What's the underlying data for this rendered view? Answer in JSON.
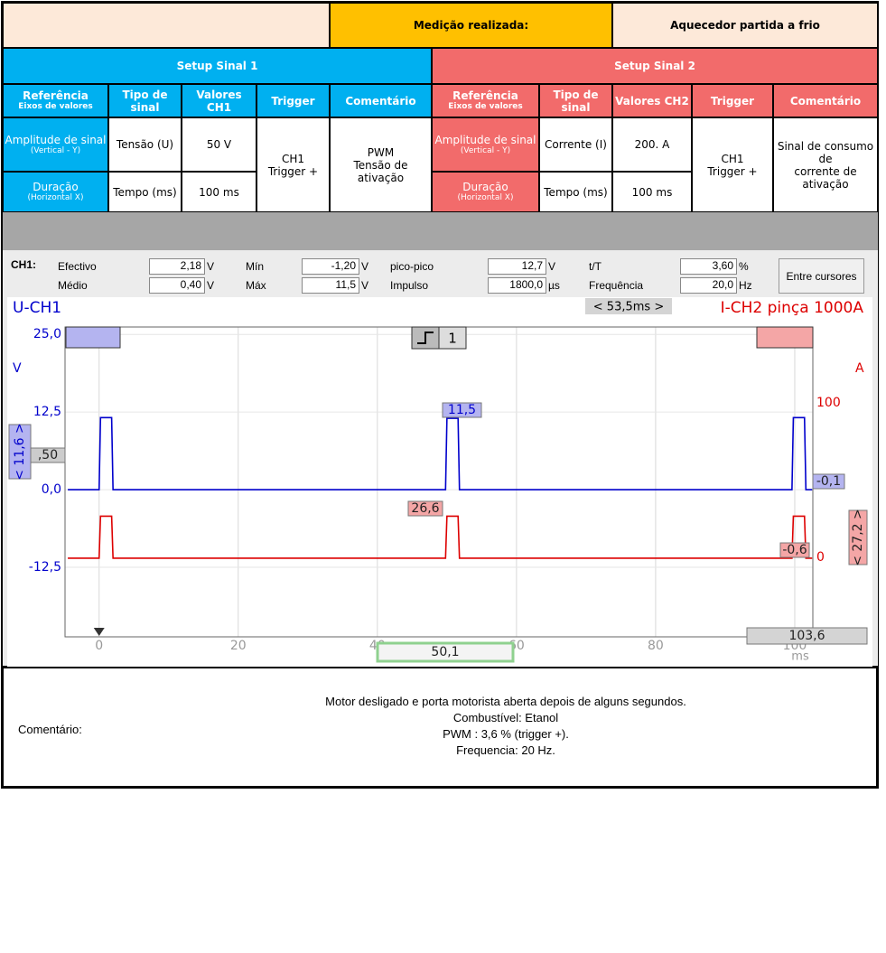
{
  "header": {
    "measurement_label": "Medição realizada:",
    "measurement_name": "Aquecedor partida a frio"
  },
  "setup1": {
    "title": "Setup Sinal 1",
    "headers": [
      "Referência",
      "Tipo de sinal",
      "Valores CH1",
      "Trigger",
      "Comentário"
    ],
    "header_sub": "Eixos de valores",
    "rows": [
      {
        "ref": "Amplitude de sinal",
        "ref_sub": "(Vertical - Y)",
        "type": "Tensão (U)",
        "value": "50 V"
      },
      {
        "ref": "Duração",
        "ref_sub": "(Horizontal X)",
        "type": "Tempo (ms)",
        "value": "100 ms"
      }
    ],
    "trigger": [
      "CH1",
      "Trigger +"
    ],
    "comment": [
      "PWM",
      "Tensão de ativação"
    ]
  },
  "setup2": {
    "title": "Setup Sinal 2",
    "headers": [
      "Referência",
      "Tipo de sinal",
      "Valores CH2",
      "Trigger",
      "Comentário"
    ],
    "header_sub": "Eixos de valores",
    "rows": [
      {
        "ref": "Amplitude de sinal",
        "ref_sub": "(Vertical - Y)",
        "type": "Corrente (I)",
        "value": "200. A"
      },
      {
        "ref": "Duração",
        "ref_sub": "(Horizontal X)",
        "type": "Tempo (ms)",
        "value": "100 ms"
      }
    ],
    "trigger": [
      "CH1",
      "Trigger +"
    ],
    "comment": [
      "Sinal de consumo de",
      "corrente de ativação"
    ]
  },
  "measurements": {
    "channel": "CH1:",
    "button": "Entre cursores",
    "items": [
      {
        "label": "Efectivo",
        "value": "2,18",
        "unit": "V"
      },
      {
        "label": "Médio",
        "value": "0,40",
        "unit": "V"
      },
      {
        "label": "Mín",
        "value": "-1,20",
        "unit": "V"
      },
      {
        "label": "Máx",
        "value": "11,5",
        "unit": "V"
      },
      {
        "label": "pico-pico",
        "value": "12,7",
        "unit": "V"
      },
      {
        "label": "Impulso",
        "value": "1800,0",
        "unit": "µs"
      },
      {
        "label": "t/T",
        "value": "3,60",
        "unit": "%"
      },
      {
        "label": "Frequência",
        "value": "20,0",
        "unit": "Hz"
      }
    ]
  },
  "chart_data": {
    "type": "line",
    "y_unit": "V",
    "y2_unit": "A",
    "x_unit": "ms",
    "cursor_delta": "< 53,5ms >",
    "trigger_channel": "1",
    "x": [
      -4.5,
      0,
      0.2,
      1.8,
      2.0,
      49.8,
      50.0,
      51.6,
      51.8,
      99.6,
      99.8,
      101.4,
      101.6,
      102.5
    ],
    "series": [
      {
        "name": "U-CH1",
        "color": "#0000cc",
        "values": [
          0,
          0,
          11.6,
          11.6,
          0,
          0,
          11.5,
          11.5,
          0,
          0,
          11.6,
          11.6,
          0,
          0
        ]
      },
      {
        "name": "I-CH2 pinça 1000A",
        "color": "#dd0000",
        "axis": "y2",
        "values": [
          -0.6,
          -0.6,
          26.6,
          26.6,
          -0.6,
          -0.6,
          26.6,
          26.6,
          -0.6,
          -0.6,
          26.6,
          26.6,
          -0.6,
          -0.6
        ]
      }
    ],
    "xlim": [
      -4.9,
      102.6
    ],
    "xticks": [
      0,
      20,
      40,
      60,
      80,
      100
    ],
    "ylim": [
      -23.7,
      26.2
    ],
    "yticks": [
      {
        "value": 25,
        "label": "25,0"
      },
      {
        "value": 12.5,
        "label": "12,5"
      },
      {
        "value": 0,
        "label": "0,0"
      },
      {
        "value": -12.5,
        "label": "-12,5"
      }
    ],
    "y2lim": [
      -51.5,
      149
    ],
    "y2ticks": [
      0,
      100
    ],
    "grid": true,
    "annotations": [
      "11,5",
      "26,6",
      "-0,1",
      "-0,6",
      "< 27,2 >",
      "< 11,6 >",
      ",50",
      "103,6",
      "50,1"
    ]
  },
  "comment": {
    "label": "Comentário:",
    "lines": [
      "Motor desligado e porta motorista aberta depois de alguns segundos.",
      "Combustível: Etanol",
      "PWM : 3,6 % (trigger +).",
      "Frequencia: 20 Hz."
    ]
  }
}
